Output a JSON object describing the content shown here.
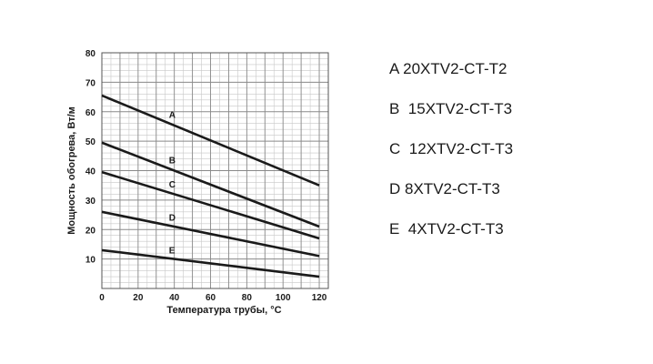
{
  "chart_data": {
    "type": "line",
    "xlabel": "Температура трубы, °С",
    "ylabel": "Мощность обогрева, Вт/м",
    "xlim": [
      0,
      125
    ],
    "ylim": [
      0,
      80
    ],
    "x_ticks": [
      0,
      20,
      40,
      60,
      80,
      100,
      120
    ],
    "y_ticks": [
      10,
      20,
      30,
      40,
      50,
      60,
      70,
      80
    ],
    "grid": true,
    "legend_position": "right",
    "series": [
      {
        "name": "A",
        "label_x": 36,
        "x": [
          0,
          120
        ],
        "y": [
          65.5,
          35
        ]
      },
      {
        "name": "B",
        "label_x": 36,
        "x": [
          0,
          120
        ],
        "y": [
          49.5,
          21
        ]
      },
      {
        "name": "C",
        "label_x": 36,
        "x": [
          0,
          120
        ],
        "y": [
          39.5,
          17
        ]
      },
      {
        "name": "D",
        "label_x": 36,
        "x": [
          0,
          120
        ],
        "y": [
          26,
          11
        ]
      },
      {
        "name": "E",
        "label_x": 36,
        "x": [
          0,
          120
        ],
        "y": [
          13,
          4
        ]
      }
    ]
  },
  "legend": [
    {
      "key": "A",
      "text": "20XTV2-CT-T2",
      "spacer": " "
    },
    {
      "key": "B",
      "text": "15XTV2-CT-T3",
      "spacer": "  "
    },
    {
      "key": "C",
      "text": "12XTV2-CT-T3",
      "spacer": "  "
    },
    {
      "key": "D",
      "text": "8XTV2-CT-T3",
      "spacer": " "
    },
    {
      "key": "E",
      "text": "4XTV2-CT-T3",
      "spacer": "  "
    }
  ],
  "colors": {
    "line": "#1a1a1a",
    "grid": "#8a8a8a",
    "minor_grid": "#c8c8c8"
  }
}
